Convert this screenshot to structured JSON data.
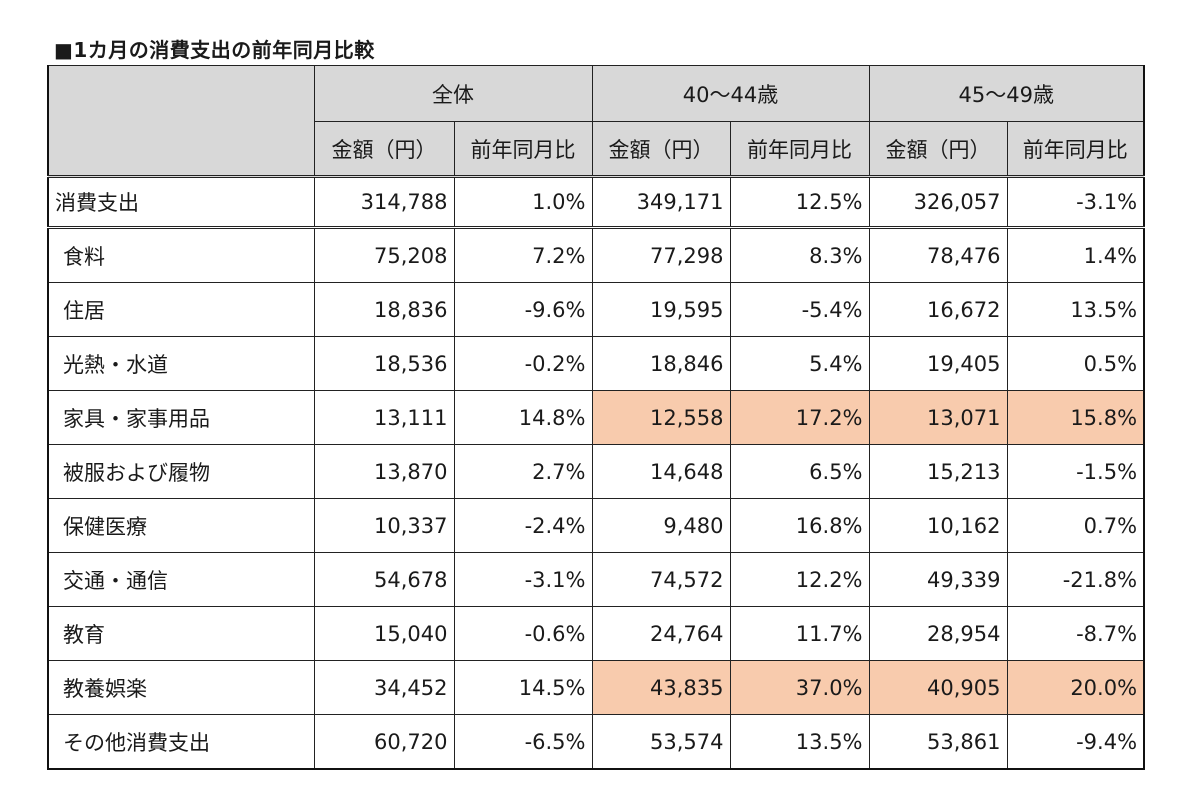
{
  "title": "■1カ月の消費支出の前年同月比較",
  "groups": [
    "全体",
    "40～44歳",
    "45～49歳"
  ],
  "subheaders": {
    "amount": "金額（円）",
    "yoy": "前年同月比"
  },
  "total": {
    "label": "消費支出",
    "values": [
      "314,788",
      "1.0%",
      "349,171",
      "12.5%",
      "326,057",
      "-3.1%"
    ]
  },
  "rows": [
    {
      "label": "食料",
      "values": [
        "75,208",
        "7.2%",
        "77,298",
        "8.3%",
        "78,476",
        "1.4%"
      ]
    },
    {
      "label": "住居",
      "values": [
        "18,836",
        "-9.6%",
        "19,595",
        "-5.4%",
        "16,672",
        "13.5%"
      ]
    },
    {
      "label": "光熱・水道",
      "values": [
        "18,536",
        "-0.2%",
        "18,846",
        "5.4%",
        "19,405",
        "0.5%"
      ]
    },
    {
      "label": "家具・家事用品",
      "values": [
        "13,111",
        "14.8%",
        "12,558",
        "17.2%",
        "13,071",
        "15.8%"
      ]
    },
    {
      "label": "被服および履物",
      "values": [
        "13,870",
        "2.7%",
        "14,648",
        "6.5%",
        "15,213",
        "-1.5%"
      ]
    },
    {
      "label": "保健医療",
      "values": [
        "10,337",
        "-2.4%",
        "9,480",
        "16.8%",
        "10,162",
        "0.7%"
      ]
    },
    {
      "label": "交通・通信",
      "values": [
        "54,678",
        "-3.1%",
        "74,572",
        "12.2%",
        "49,339",
        "-21.8%"
      ]
    },
    {
      "label": "教育",
      "values": [
        "15,040",
        "-0.6%",
        "24,764",
        "11.7%",
        "28,954",
        "-8.7%"
      ]
    },
    {
      "label": "教養娯楽",
      "values": [
        "34,452",
        "14.5%",
        "43,835",
        "37.0%",
        "40,905",
        "20.0%"
      ]
    },
    {
      "label": "その他消費支出",
      "values": [
        "60,720",
        "-6.5%",
        "53,574",
        "13.5%",
        "53,861",
        "-9.4%"
      ]
    }
  ],
  "highlight_color": "#f8cbad",
  "header_color": "#d8d8d8"
}
